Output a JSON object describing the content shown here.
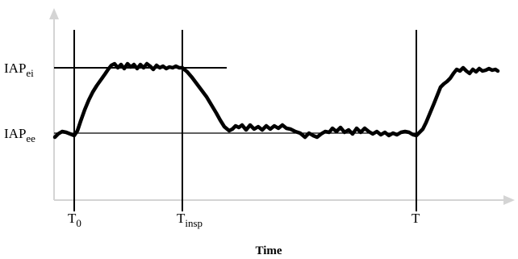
{
  "labels": {
    "iap_ei": {
      "main": "IAP",
      "sub": "ei"
    },
    "iap_ee": {
      "main": "IAP",
      "sub": "ee"
    },
    "t0": {
      "main": "T",
      "sub": "0"
    },
    "tinsp": {
      "main": "T",
      "sub": "insp"
    },
    "t": {
      "main": "T"
    },
    "x_axis": "Time"
  }
}
